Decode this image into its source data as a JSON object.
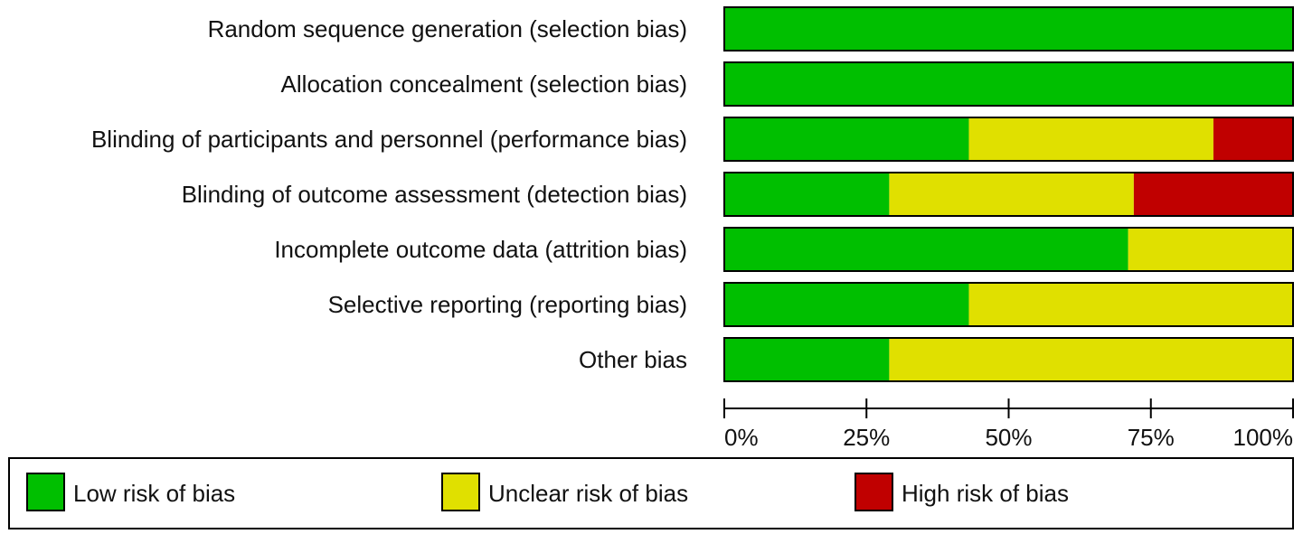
{
  "chart_data": {
    "type": "stacked-bar",
    "orientation": "horizontal",
    "categories": [
      "Random sequence generation (selection bias)",
      "Allocation concealment (selection bias)",
      "Blinding of participants and personnel (performance bias)",
      "Blinding of outcome assessment (detection bias)",
      "Incomplete outcome data (attrition bias)",
      "Selective reporting (reporting bias)",
      "Other bias"
    ],
    "series": [
      {
        "name": "Low risk of bias",
        "color": "#00bf00",
        "values": [
          100,
          100,
          43,
          29,
          71,
          43,
          29
        ]
      },
      {
        "name": "Unclear risk of bias",
        "color": "#e0e000",
        "values": [
          0,
          0,
          43,
          43,
          29,
          57,
          71
        ]
      },
      {
        "name": "High risk of bias",
        "color": "#c00000",
        "values": [
          0,
          0,
          14,
          28,
          0,
          0,
          0
        ]
      }
    ],
    "xlim": [
      0,
      100
    ],
    "xticks": [
      {
        "value": 0,
        "label": "0%"
      },
      {
        "value": 25,
        "label": "25%"
      },
      {
        "value": 50,
        "label": "50%"
      },
      {
        "value": 75,
        "label": "75%"
      },
      {
        "value": 100,
        "label": "100%"
      }
    ],
    "legend": "bottom"
  }
}
